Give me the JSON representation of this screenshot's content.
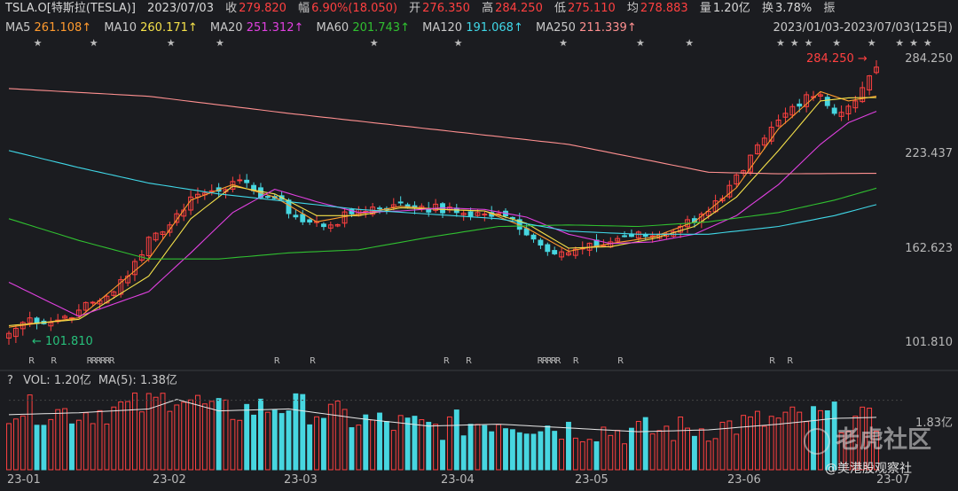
{
  "header": {
    "symbol": "TSLA.O[特斯拉(TESLA)]",
    "date": "2023/07/03",
    "close_label": "收",
    "close": "279.820",
    "change_label": "幅",
    "change": "6.90%(18.050)",
    "open_label": "开",
    "open": "276.350",
    "high_label": "高",
    "high": "284.250",
    "low_label": "低",
    "low": "275.110",
    "avg_label": "均",
    "avg": "278.883",
    "volume_label": "量",
    "volume": "1.20亿",
    "turnover_label": "换",
    "turnover": "3.78%",
    "amplitude_label": "振"
  },
  "ma_bar": {
    "items": [
      {
        "label": "MA5",
        "value": "261.108↑",
        "color": "#ff9a2e"
      },
      {
        "label": "MA10",
        "value": "260.171↑",
        "color": "#f5e14a"
      },
      {
        "label": "MA20",
        "value": "251.312↑",
        "color": "#e040e0"
      },
      {
        "label": "MA60",
        "value": "201.743↑",
        "color": "#30c030"
      },
      {
        "label": "MA120",
        "value": "191.068↑",
        "color": "#40d8e8"
      },
      {
        "label": "MA250",
        "value": "211.339↑",
        "color": "#ff9090"
      }
    ],
    "range": "2023/01/03-2023/07/03(125日)"
  },
  "volume_bar": {
    "help": "?",
    "vol_label": "VOL:",
    "vol_value": "1.20亿",
    "ma_label": "MA(5):",
    "ma_value": "1.38亿",
    "tick_label": "1.83亿"
  },
  "markers": {
    "high_marker": "284.250",
    "low_marker": "101.810",
    "star": "★",
    "r": "R"
  },
  "watermarks": {
    "brand": "老虎社区",
    "account": "@美港股观察社"
  },
  "chart_data": {
    "type": "candlestick",
    "y_ticks": [
      "284.250",
      "223.437",
      "162.623",
      "101.810"
    ],
    "ylim": [
      101.81,
      284.25
    ],
    "x_ticks": [
      "23-01",
      "23-02",
      "23-03",
      "23-04",
      "23-05",
      "23-06",
      "23-07"
    ],
    "up_color": "#ff4040",
    "down_color": "#47d6e0",
    "anchors": [
      {
        "i": 0,
        "c": 108
      },
      {
        "i": 3,
        "c": 118
      },
      {
        "i": 6,
        "c": 115
      },
      {
        "i": 10,
        "c": 123
      },
      {
        "i": 14,
        "c": 132
      },
      {
        "i": 17,
        "c": 145
      },
      {
        "i": 20,
        "c": 170
      },
      {
        "i": 23,
        "c": 178
      },
      {
        "i": 26,
        "c": 196
      },
      {
        "i": 29,
        "c": 200
      },
      {
        "i": 32,
        "c": 206
      },
      {
        "i": 35,
        "c": 200
      },
      {
        "i": 38,
        "c": 195
      },
      {
        "i": 42,
        "c": 180
      },
      {
        "i": 46,
        "c": 178
      },
      {
        "i": 50,
        "c": 188
      },
      {
        "i": 55,
        "c": 191
      },
      {
        "i": 59,
        "c": 190
      },
      {
        "i": 64,
        "c": 186
      },
      {
        "i": 68,
        "c": 185
      },
      {
        "i": 72,
        "c": 182
      },
      {
        "i": 76,
        "c": 165
      },
      {
        "i": 80,
        "c": 160
      },
      {
        "i": 84,
        "c": 164
      },
      {
        "i": 88,
        "c": 171
      },
      {
        "i": 92,
        "c": 171
      },
      {
        "i": 96,
        "c": 177
      },
      {
        "i": 99,
        "c": 185
      },
      {
        "i": 102,
        "c": 195
      },
      {
        "i": 105,
        "c": 213
      },
      {
        "i": 108,
        "c": 234
      },
      {
        "i": 111,
        "c": 250
      },
      {
        "i": 114,
        "c": 262
      },
      {
        "i": 116,
        "c": 262
      },
      {
        "i": 118,
        "c": 250
      },
      {
        "i": 121,
        "c": 258
      },
      {
        "i": 124,
        "c": 279.82
      }
    ],
    "moving_averages": {
      "MA5": [
        [
          0,
          112
        ],
        [
          10,
          118
        ],
        [
          20,
          156
        ],
        [
          26,
          194
        ],
        [
          32,
          204
        ],
        [
          38,
          196
        ],
        [
          44,
          180
        ],
        [
          50,
          185
        ],
        [
          56,
          190
        ],
        [
          62,
          188
        ],
        [
          68,
          187
        ],
        [
          74,
          176
        ],
        [
          80,
          161
        ],
        [
          86,
          166
        ],
        [
          92,
          170
        ],
        [
          98,
          180
        ],
        [
          104,
          202
        ],
        [
          110,
          240
        ],
        [
          116,
          264
        ],
        [
          120,
          258
        ],
        [
          124,
          261.1
        ]
      ],
      "MA10": [
        [
          0,
          113
        ],
        [
          10,
          117
        ],
        [
          20,
          145
        ],
        [
          26,
          182
        ],
        [
          32,
          203
        ],
        [
          38,
          198
        ],
        [
          44,
          184
        ],
        [
          50,
          184
        ],
        [
          56,
          189
        ],
        [
          62,
          188
        ],
        [
          68,
          187
        ],
        [
          74,
          179
        ],
        [
          80,
          163
        ],
        [
          86,
          164
        ],
        [
          92,
          169
        ],
        [
          98,
          177
        ],
        [
          104,
          196
        ],
        [
          110,
          226
        ],
        [
          116,
          258
        ],
        [
          120,
          260
        ],
        [
          124,
          260.2
        ]
      ],
      "MA20": [
        [
          0,
          141
        ],
        [
          10,
          119
        ],
        [
          20,
          135
        ],
        [
          26,
          160
        ],
        [
          32,
          186
        ],
        [
          38,
          201
        ],
        [
          44,
          193
        ],
        [
          50,
          186
        ],
        [
          56,
          187
        ],
        [
          62,
          189
        ],
        [
          68,
          188
        ],
        [
          74,
          183
        ],
        [
          80,
          172
        ],
        [
          86,
          166
        ],
        [
          92,
          167
        ],
        [
          98,
          172
        ],
        [
          104,
          184
        ],
        [
          110,
          204
        ],
        [
          116,
          230
        ],
        [
          120,
          244
        ],
        [
          124,
          251.3
        ]
      ],
      "MA60": [
        [
          0,
          182
        ],
        [
          10,
          168
        ],
        [
          20,
          156
        ],
        [
          30,
          156
        ],
        [
          40,
          160
        ],
        [
          50,
          162
        ],
        [
          60,
          170
        ],
        [
          70,
          177
        ],
        [
          80,
          178
        ],
        [
          90,
          177
        ],
        [
          100,
          180
        ],
        [
          110,
          186
        ],
        [
          118,
          194
        ],
        [
          124,
          201.7
        ]
      ],
      "MA120": [
        [
          0,
          226
        ],
        [
          10,
          215
        ],
        [
          20,
          205
        ],
        [
          30,
          198
        ],
        [
          40,
          193
        ],
        [
          50,
          188
        ],
        [
          60,
          185
        ],
        [
          70,
          182
        ],
        [
          80,
          174
        ],
        [
          90,
          172
        ],
        [
          100,
          172
        ],
        [
          110,
          177
        ],
        [
          118,
          184
        ],
        [
          124,
          191.1
        ]
      ],
      "MA250": [
        [
          0,
          266
        ],
        [
          20,
          261
        ],
        [
          40,
          250
        ],
        [
          60,
          240
        ],
        [
          80,
          230
        ],
        [
          100,
          212
        ],
        [
          110,
          211
        ],
        [
          124,
          211.3
        ]
      ]
    },
    "volume_ylim": [
      0,
      2.1
    ],
    "volume_tick": 1.83,
    "volume_anchors": [
      {
        "i": 0,
        "v": 1.6
      },
      {
        "i": 10,
        "v": 1.5
      },
      {
        "i": 20,
        "v": 1.7
      },
      {
        "i": 24,
        "v": 2.0
      },
      {
        "i": 30,
        "v": 1.5
      },
      {
        "i": 40,
        "v": 1.7
      },
      {
        "i": 50,
        "v": 1.3
      },
      {
        "i": 60,
        "v": 1.1
      },
      {
        "i": 70,
        "v": 1.3
      },
      {
        "i": 80,
        "v": 1.1
      },
      {
        "i": 90,
        "v": 1.0
      },
      {
        "i": 100,
        "v": 1.1
      },
      {
        "i": 110,
        "v": 1.3
      },
      {
        "i": 118,
        "v": 1.4
      },
      {
        "i": 124,
        "v": 1.2
      }
    ],
    "volume_ma5": [
      [
        0,
        1.45
      ],
      [
        10,
        1.5
      ],
      [
        20,
        1.6
      ],
      [
        24,
        1.85
      ],
      [
        30,
        1.55
      ],
      [
        40,
        1.6
      ],
      [
        50,
        1.35
      ],
      [
        60,
        1.15
      ],
      [
        70,
        1.2
      ],
      [
        80,
        1.1
      ],
      [
        90,
        1.0
      ],
      [
        100,
        1.05
      ],
      [
        110,
        1.2
      ],
      [
        118,
        1.35
      ],
      [
        124,
        1.38
      ]
    ],
    "star_positions": [
      4,
      12,
      23,
      30,
      52,
      64,
      79,
      90,
      97,
      110,
      112,
      114,
      118,
      123,
      127,
      129,
      131
    ],
    "r_positions": [
      4,
      9,
      17,
      18,
      19,
      20,
      21,
      22,
      59,
      67,
      97,
      102,
      118,
      119,
      120,
      121,
      122,
      126,
      136,
      170,
      174
    ]
  }
}
